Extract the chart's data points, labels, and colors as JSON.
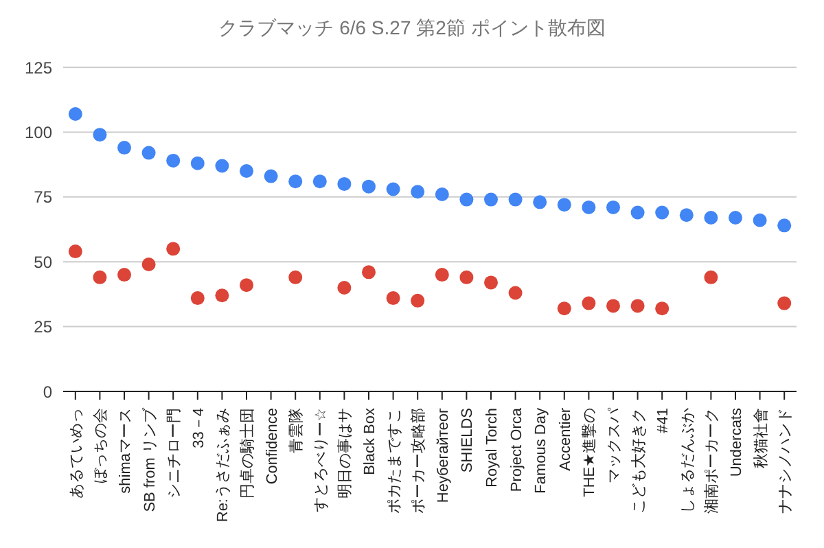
{
  "chart_data": {
    "type": "scatter",
    "title": "クラブマッチ 6/6 S.27 第2節 ポイント散布図",
    "categories": [
      "あるていめっ",
      "ぼっちの会",
      "shimaマース",
      "SB from リンブ",
      "シニチロー門",
      "33－4",
      "Re:うさだふぁみ",
      "円卓の騎士団",
      "Confidence",
      "青雲隊",
      "すとろべりー☆",
      "明日の事はサ",
      "Black Box",
      "ポカたまですこ",
      "ポーカー攻略部",
      "Heyбегайтеог",
      "SHIELDS",
      "Royal Torch",
      "Project Orca",
      "Famous Day",
      "Accentier",
      "THE★進撃の",
      "マックスパ",
      "こども大好きク",
      "#41",
      "しょるだんぶか",
      "湘南ポーカーク",
      "Undercats",
      "秋猫社會",
      "ナナシノハンド"
    ],
    "series": [
      {
        "color": "#4285f4",
        "values": [
          107,
          99,
          94,
          92,
          89,
          88,
          87,
          85,
          83,
          81,
          81,
          80,
          79,
          78,
          77,
          76,
          74,
          74,
          74,
          73,
          72,
          71,
          71,
          69,
          69,
          68,
          67,
          67,
          66,
          64
        ]
      },
      {
        "color": "#db4437",
        "values": [
          54,
          44,
          45,
          49,
          55,
          36,
          37,
          41,
          null,
          44,
          null,
          40,
          46,
          36,
          35,
          45,
          44,
          42,
          38,
          null,
          32,
          34,
          33,
          33,
          32,
          null,
          44,
          null,
          null,
          34
        ]
      }
    ],
    "ylim": [
      0,
      125
    ],
    "yticks": [
      0,
      25,
      50,
      75,
      100,
      125
    ],
    "grid": "y",
    "marker": "circle"
  }
}
